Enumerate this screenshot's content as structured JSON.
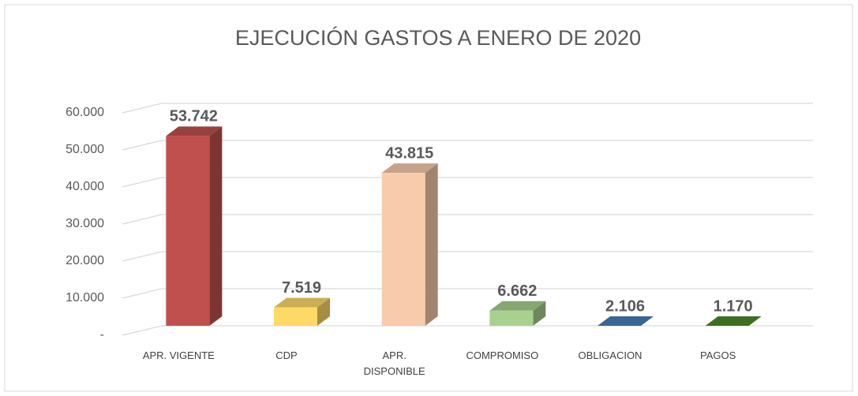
{
  "chart_data": {
    "type": "bar3d",
    "title": "EJECUCIÓN GASTOS A ENERO DE 2020",
    "categories": [
      "APR. VIGENTE",
      "CDP",
      "APR. DISPONIBLE",
      "COMPROMISO",
      "OBLIGACION",
      "PAGOS"
    ],
    "values": [
      53742,
      7519,
      43815,
      6662,
      2106,
      1170
    ],
    "value_labels": [
      "53.742",
      "7.519",
      "43.815",
      "6.662",
      "2.106",
      "1.170"
    ],
    "colors": [
      "#c0504d",
      "#ffd966",
      "#f8cbad",
      "#a9d18e",
      "#4a7ebb",
      "#4e8a2a"
    ],
    "ylim": [
      0,
      60000
    ],
    "yticks": [
      {
        "value": 0,
        "label": "-"
      },
      {
        "value": 10000,
        "label": "10.000"
      },
      {
        "value": 20000,
        "label": "20.000"
      },
      {
        "value": 30000,
        "label": "30.000"
      },
      {
        "value": 40000,
        "label": "40.000"
      },
      {
        "value": 50000,
        "label": "50.000"
      },
      {
        "value": 60000,
        "label": "60.000"
      }
    ],
    "grid": true
  }
}
